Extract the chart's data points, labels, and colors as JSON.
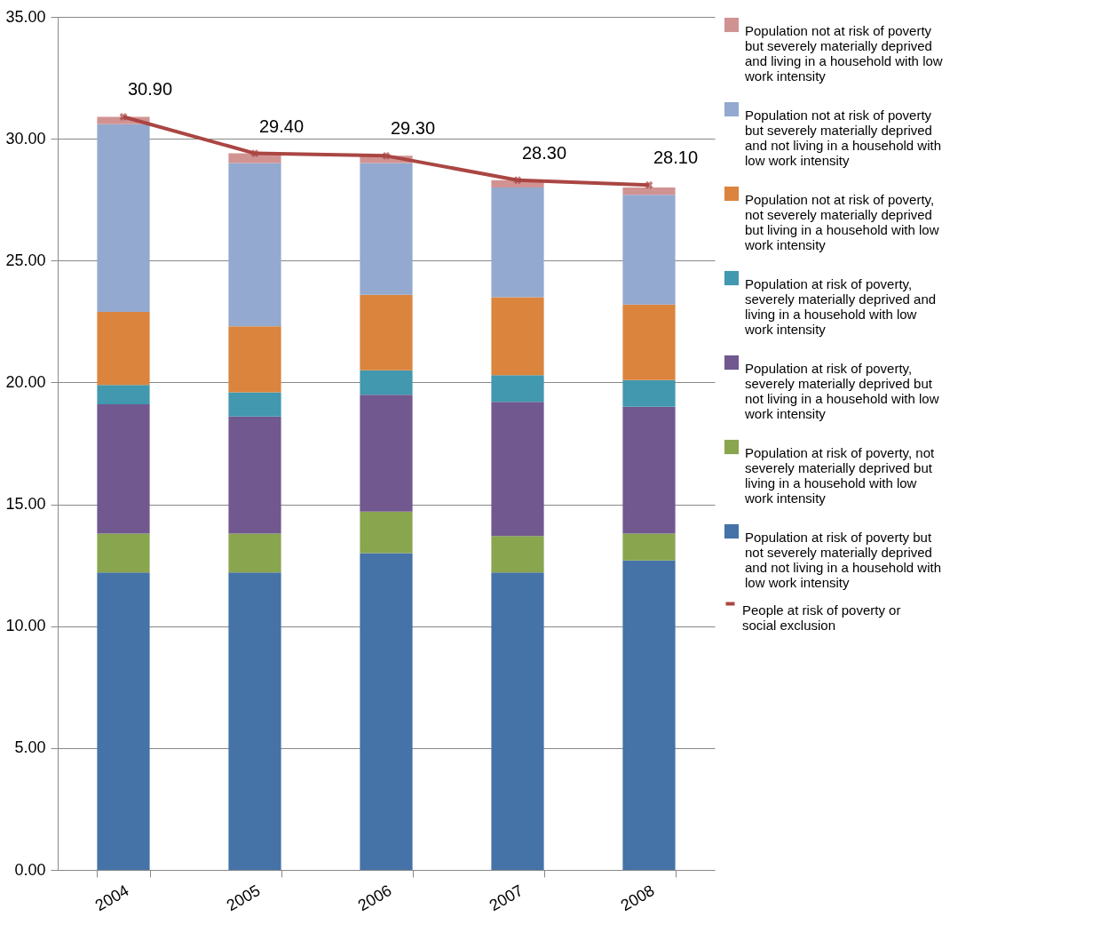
{
  "chart_data": {
    "type": "bar",
    "stacked": true,
    "categories": [
      "2004",
      "2005",
      "2006",
      "2007",
      "2008"
    ],
    "series": [
      {
        "name": "Population at risk of poverty but not severely materially deprived and not living in a household with low work intensity",
        "color": "#4572a7",
        "values": [
          12.2,
          12.2,
          13.0,
          12.2,
          12.7
        ]
      },
      {
        "name": "Population at risk of poverty, not severely materially deprived but living in a household with low work intensity",
        "color": "#89a54e",
        "values": [
          1.6,
          1.6,
          1.7,
          1.5,
          1.1
        ]
      },
      {
        "name": "Population at risk of poverty, severely materially deprived but not living in a household with low work intensity",
        "color": "#71588f",
        "values": [
          5.3,
          4.8,
          4.8,
          5.5,
          5.2
        ]
      },
      {
        "name": "Population at risk of poverty, severely materially deprived and living in a household with low work intensity",
        "color": "#4198af",
        "values": [
          0.8,
          1.0,
          1.0,
          1.1,
          1.1
        ]
      },
      {
        "name": "Population not at risk of poverty, not severely materially deprived but living in a household with low work intensity",
        "color": "#db843d",
        "values": [
          3.0,
          2.7,
          3.1,
          3.2,
          3.1
        ]
      },
      {
        "name": "Population not at risk of poverty but severely materially deprived and not living in a household with low work intensity",
        "color": "#93a9cf",
        "values": [
          7.7,
          6.7,
          5.4,
          4.5,
          4.5
        ]
      },
      {
        "name": "Population not at risk of poverty but severely materially deprived and living in a household with low work intensity",
        "color": "#d19392",
        "values": [
          0.3,
          0.4,
          0.3,
          0.3,
          0.3
        ]
      },
      {
        "name": "People at risk of poverty or social exclusion",
        "type": "line",
        "color": "#aa4643",
        "marker": "cross",
        "values": [
          30.9,
          29.4,
          29.3,
          28.3,
          28.1
        ],
        "value_labels": [
          "30.90",
          "29.40",
          "29.30",
          "28.30",
          "28.10"
        ]
      }
    ],
    "ylim": [
      0,
      35
    ],
    "yticks": [
      {
        "value": 0,
        "label": "0.00"
      },
      {
        "value": 5,
        "label": "5.00"
      },
      {
        "value": 10,
        "label": "10.00"
      },
      {
        "value": 15,
        "label": "15.00"
      },
      {
        "value": 20,
        "label": "20.00"
      },
      {
        "value": 25,
        "label": "25.00"
      },
      {
        "value": 30,
        "label": "30.00"
      },
      {
        "value": 35,
        "label": "35.00"
      }
    ],
    "grid": "y",
    "legend": "right"
  }
}
